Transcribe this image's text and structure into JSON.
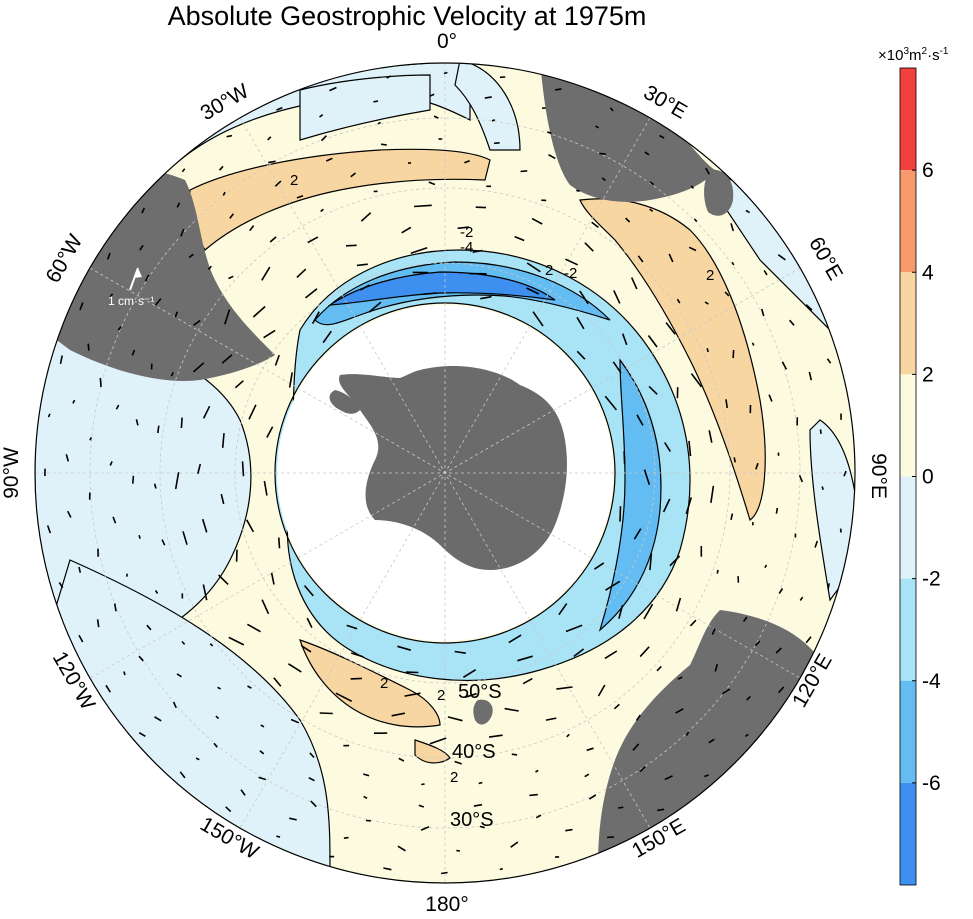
{
  "title": "Absolute Geostrophic Velocity at 1975m",
  "lon_labels": {
    "l0": "0°",
    "l30e": "30°E",
    "l60e": "60°E",
    "l90e": "90°E",
    "l120e": "120°E",
    "l150e": "150°E",
    "l180": "180°",
    "l150w": "150°W",
    "l120w": "120°W",
    "l90w": "90°W",
    "l60w": "60°W",
    "l30w": "30°W"
  },
  "lat_labels": {
    "l50s": "50°S",
    "l40s": "40°S",
    "l30s": "30°S"
  },
  "contour_labels": {
    "c_neg2a": "-2",
    "c_neg2b": "-2",
    "c_neg4": "-4",
    "c_2a": "2",
    "c_2b": "2",
    "c_2c": "2",
    "c_2d": "2",
    "c_2e": "2",
    "c_2f": "2"
  },
  "reference_vector": {
    "label": "1 cm·s⁻¹"
  },
  "colorbar": {
    "unit_prefix": "×10",
    "unit_exp1": "3",
    "unit_mid": "m",
    "unit_exp2": "2",
    "unit_mid2": "·s",
    "unit_exp3": "-1",
    "ticks": [
      "6",
      "4",
      "2",
      "0",
      "-2",
      "-4",
      "-6"
    ],
    "levels": [
      {
        "from": 6,
        "to": 8,
        "color": "#f2413d"
      },
      {
        "from": 4,
        "to": 6,
        "color": "#f79a6b"
      },
      {
        "from": 2,
        "to": 4,
        "color": "#f8d6a1"
      },
      {
        "from": 0,
        "to": 2,
        "color": "#fcfadf"
      },
      {
        "from": -2,
        "to": 0,
        "color": "#dff2fa"
      },
      {
        "from": -4,
        "to": -2,
        "color": "#a9e3f6"
      },
      {
        "from": -6,
        "to": -4,
        "color": "#64bdf2"
      },
      {
        "from": -8,
        "to": -6,
        "color": "#3d8ff0"
      }
    ]
  },
  "colors": {
    "land": "#6e6e6e",
    "antarctica": "#6b6b6b",
    "grid": "#c8c8c8",
    "contour": "#000000",
    "arrow": "#000000"
  }
}
